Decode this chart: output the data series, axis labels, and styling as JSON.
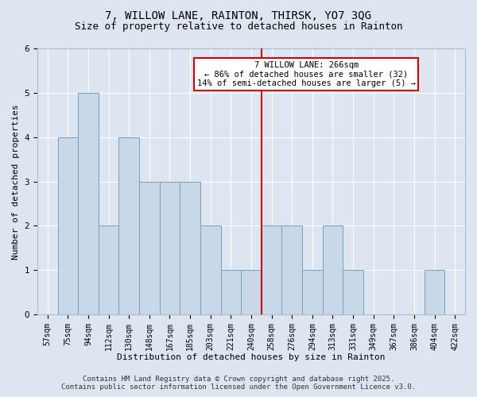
{
  "title": "7, WILLOW LANE, RAINTON, THIRSK, YO7 3QG",
  "subtitle": "Size of property relative to detached houses in Rainton",
  "xlabel": "Distribution of detached houses by size in Rainton",
  "ylabel": "Number of detached properties",
  "footer": "Contains HM Land Registry data © Crown copyright and database right 2025.\nContains public sector information licensed under the Open Government Licence v3.0.",
  "categories": [
    "57sqm",
    "75sqm",
    "94sqm",
    "112sqm",
    "130sqm",
    "148sqm",
    "167sqm",
    "185sqm",
    "203sqm",
    "221sqm",
    "240sqm",
    "258sqm",
    "276sqm",
    "294sqm",
    "313sqm",
    "331sqm",
    "349sqm",
    "367sqm",
    "386sqm",
    "404sqm",
    "422sqm"
  ],
  "values": [
    0,
    4,
    5,
    2,
    4,
    3,
    3,
    3,
    2,
    1,
    1,
    2,
    2,
    1,
    2,
    1,
    0,
    0,
    0,
    1,
    0
  ],
  "bar_color": "#c8d8e8",
  "bar_edge_color": "#7aa0bb",
  "bar_linewidth": 0.7,
  "vline_color": "#cc0000",
  "annotation_line1": "7 WILLOW LANE: 266sqm",
  "annotation_line2": "← 86% of detached houses are smaller (32)",
  "annotation_line3": "14% of semi-detached houses are larger (5) →",
  "annotation_box_color": "#cc0000",
  "ylim": [
    0,
    6
  ],
  "yticks": [
    0,
    1,
    2,
    3,
    4,
    5,
    6
  ],
  "background_color": "#dde6f0",
  "plot_bg_color": "#dde6f0",
  "grid_color": "#ffffff",
  "title_fontsize": 10,
  "subtitle_fontsize": 9,
  "axis_label_fontsize": 8,
  "tick_fontsize": 7,
  "footer_fontsize": 6.5,
  "annotation_fontsize": 7.5
}
